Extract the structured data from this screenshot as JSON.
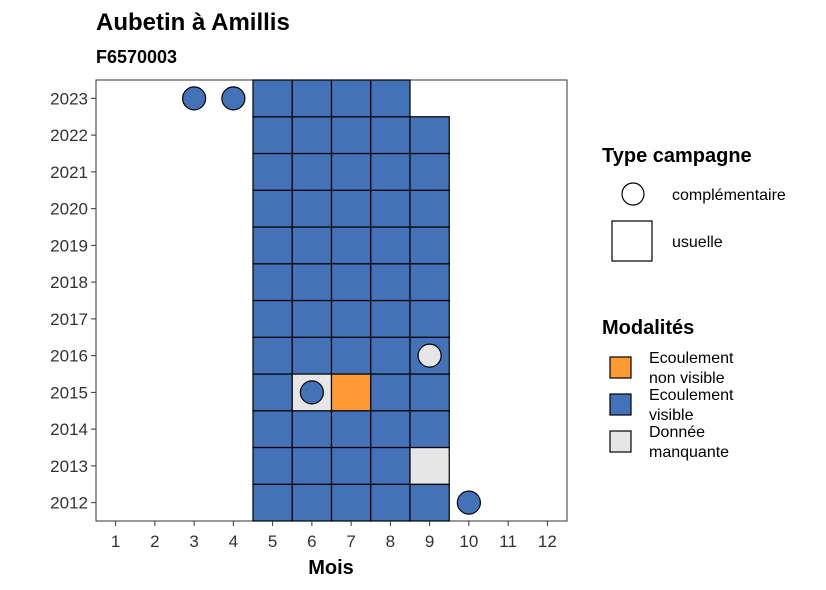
{
  "chart_data": {
    "type": "heatmap",
    "title": "Aubetin à Amillis",
    "subtitle": "F6570003",
    "xlabel": "Mois",
    "ylabel": "",
    "x_ticks": [
      1,
      2,
      3,
      4,
      5,
      6,
      7,
      8,
      9,
      10,
      11,
      12
    ],
    "y_ticks": [
      2012,
      2013,
      2014,
      2015,
      2016,
      2017,
      2018,
      2019,
      2020,
      2021,
      2022,
      2023
    ],
    "xlim": [
      0.5,
      12.5
    ],
    "ylim": [
      2011.5,
      2023.5
    ],
    "colors": {
      "Ecoulement non visible": "#ff9933",
      "Ecoulement visible": "#4472b8",
      "Donnée manquante": "#e6e6e6"
    },
    "usuelle": [
      {
        "year": 2012,
        "month": 5,
        "m": "Ecoulement visible"
      },
      {
        "year": 2012,
        "month": 6,
        "m": "Ecoulement visible"
      },
      {
        "year": 2012,
        "month": 7,
        "m": "Ecoulement visible"
      },
      {
        "year": 2012,
        "month": 8,
        "m": "Ecoulement visible"
      },
      {
        "year": 2012,
        "month": 9,
        "m": "Ecoulement visible"
      },
      {
        "year": 2013,
        "month": 5,
        "m": "Ecoulement visible"
      },
      {
        "year": 2013,
        "month": 6,
        "m": "Ecoulement visible"
      },
      {
        "year": 2013,
        "month": 7,
        "m": "Ecoulement visible"
      },
      {
        "year": 2013,
        "month": 8,
        "m": "Ecoulement visible"
      },
      {
        "year": 2013,
        "month": 9,
        "m": "Donnée manquante"
      },
      {
        "year": 2014,
        "month": 5,
        "m": "Ecoulement visible"
      },
      {
        "year": 2014,
        "month": 6,
        "m": "Ecoulement visible"
      },
      {
        "year": 2014,
        "month": 7,
        "m": "Ecoulement visible"
      },
      {
        "year": 2014,
        "month": 8,
        "m": "Ecoulement visible"
      },
      {
        "year": 2014,
        "month": 9,
        "m": "Ecoulement visible"
      },
      {
        "year": 2015,
        "month": 5,
        "m": "Ecoulement visible"
      },
      {
        "year": 2015,
        "month": 6,
        "m": "Donnée manquante"
      },
      {
        "year": 2015,
        "month": 7,
        "m": "Ecoulement non visible"
      },
      {
        "year": 2015,
        "month": 8,
        "m": "Ecoulement visible"
      },
      {
        "year": 2015,
        "month": 9,
        "m": "Ecoulement visible"
      },
      {
        "year": 2016,
        "month": 5,
        "m": "Ecoulement visible"
      },
      {
        "year": 2016,
        "month": 6,
        "m": "Ecoulement visible"
      },
      {
        "year": 2016,
        "month": 7,
        "m": "Ecoulement visible"
      },
      {
        "year": 2016,
        "month": 8,
        "m": "Ecoulement visible"
      },
      {
        "year": 2016,
        "month": 9,
        "m": "Ecoulement visible"
      },
      {
        "year": 2017,
        "month": 5,
        "m": "Ecoulement visible"
      },
      {
        "year": 2017,
        "month": 6,
        "m": "Ecoulement visible"
      },
      {
        "year": 2017,
        "month": 7,
        "m": "Ecoulement visible"
      },
      {
        "year": 2017,
        "month": 8,
        "m": "Ecoulement visible"
      },
      {
        "year": 2017,
        "month": 9,
        "m": "Ecoulement visible"
      },
      {
        "year": 2018,
        "month": 5,
        "m": "Ecoulement visible"
      },
      {
        "year": 2018,
        "month": 6,
        "m": "Ecoulement visible"
      },
      {
        "year": 2018,
        "month": 7,
        "m": "Ecoulement visible"
      },
      {
        "year": 2018,
        "month": 8,
        "m": "Ecoulement visible"
      },
      {
        "year": 2018,
        "month": 9,
        "m": "Ecoulement visible"
      },
      {
        "year": 2019,
        "month": 5,
        "m": "Ecoulement visible"
      },
      {
        "year": 2019,
        "month": 6,
        "m": "Ecoulement visible"
      },
      {
        "year": 2019,
        "month": 7,
        "m": "Ecoulement visible"
      },
      {
        "year": 2019,
        "month": 8,
        "m": "Ecoulement visible"
      },
      {
        "year": 2019,
        "month": 9,
        "m": "Ecoulement visible"
      },
      {
        "year": 2020,
        "month": 5,
        "m": "Ecoulement visible"
      },
      {
        "year": 2020,
        "month": 6,
        "m": "Ecoulement visible"
      },
      {
        "year": 2020,
        "month": 7,
        "m": "Ecoulement visible"
      },
      {
        "year": 2020,
        "month": 8,
        "m": "Ecoulement visible"
      },
      {
        "year": 2020,
        "month": 9,
        "m": "Ecoulement visible"
      },
      {
        "year": 2021,
        "month": 5,
        "m": "Ecoulement visible"
      },
      {
        "year": 2021,
        "month": 6,
        "m": "Ecoulement visible"
      },
      {
        "year": 2021,
        "month": 7,
        "m": "Ecoulement visible"
      },
      {
        "year": 2021,
        "month": 8,
        "m": "Ecoulement visible"
      },
      {
        "year": 2021,
        "month": 9,
        "m": "Ecoulement visible"
      },
      {
        "year": 2022,
        "month": 5,
        "m": "Ecoulement visible"
      },
      {
        "year": 2022,
        "month": 6,
        "m": "Ecoulement visible"
      },
      {
        "year": 2022,
        "month": 7,
        "m": "Ecoulement visible"
      },
      {
        "year": 2022,
        "month": 8,
        "m": "Ecoulement visible"
      },
      {
        "year": 2022,
        "month": 9,
        "m": "Ecoulement visible"
      },
      {
        "year": 2023,
        "month": 5,
        "m": "Ecoulement visible"
      },
      {
        "year": 2023,
        "month": 6,
        "m": "Ecoulement visible"
      },
      {
        "year": 2023,
        "month": 7,
        "m": "Ecoulement visible"
      },
      {
        "year": 2023,
        "month": 8,
        "m": "Ecoulement visible"
      }
    ],
    "complementaire": [
      {
        "year": 2023,
        "month": 3,
        "m": "Ecoulement visible"
      },
      {
        "year": 2023,
        "month": 4,
        "m": "Ecoulement visible"
      },
      {
        "year": 2016,
        "month": 9,
        "m": "Donnée manquante"
      },
      {
        "year": 2015,
        "month": 6,
        "m": "Ecoulement visible"
      },
      {
        "year": 2012,
        "month": 10,
        "m": "Ecoulement visible"
      }
    ],
    "legend": {
      "type_title": "Type campagne",
      "type_items": [
        "complémentaire",
        "usuelle"
      ],
      "mod_title": "Modalités",
      "mod_items": [
        {
          "key": "Ecoulement non visible",
          "lines": [
            "Ecoulement",
            "non visible"
          ]
        },
        {
          "key": "Ecoulement visible",
          "lines": [
            "Ecoulement",
            "visible"
          ]
        },
        {
          "key": "Donnée manquante",
          "lines": [
            "Donnée",
            "manquante"
          ]
        }
      ],
      "placement": "right"
    }
  }
}
